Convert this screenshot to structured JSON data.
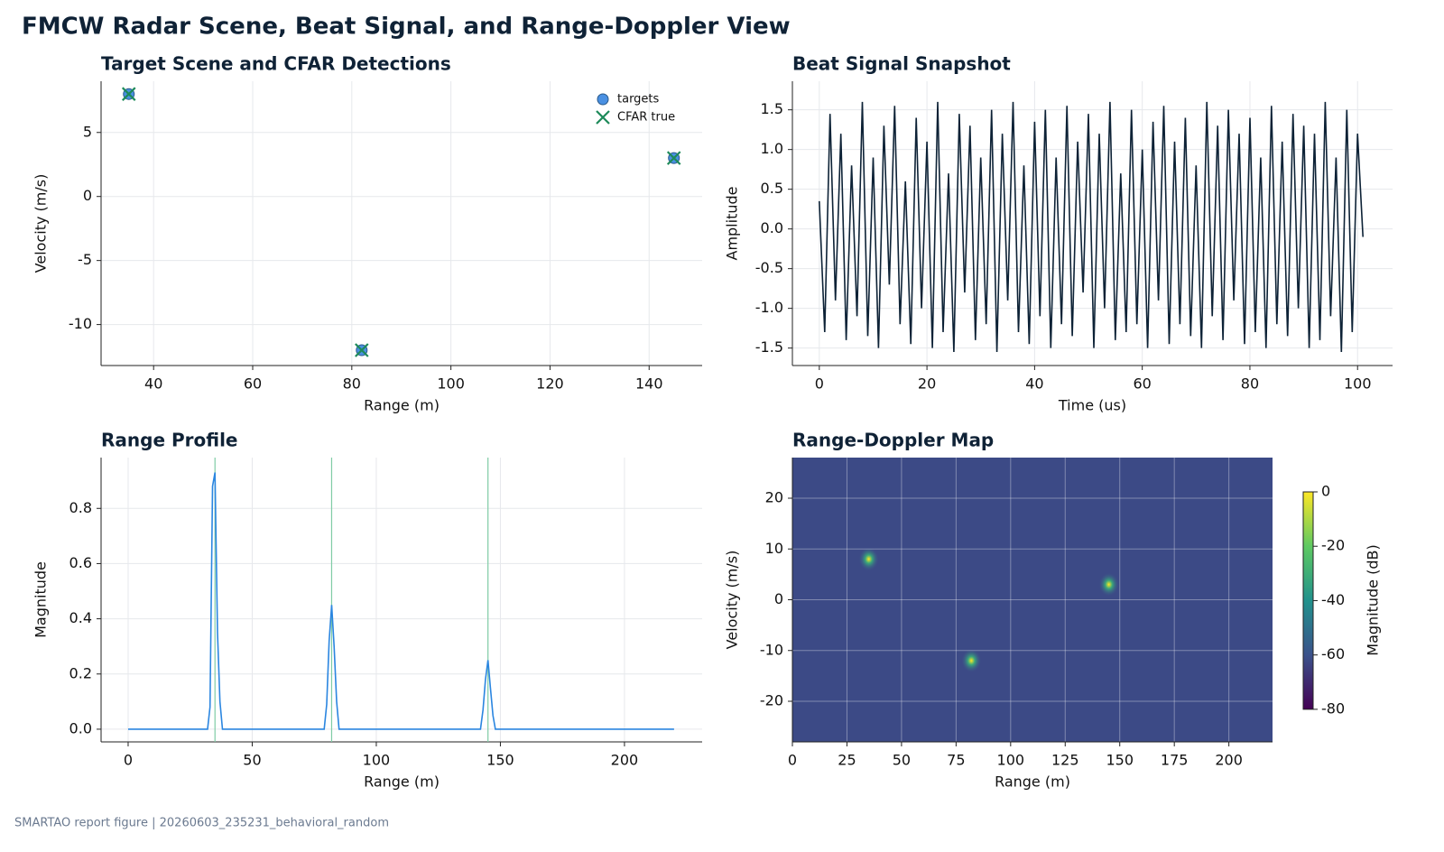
{
  "title": "FMCW Radar Scene, Beat Signal, and Range-Doppler View",
  "footer": "SMARTAO report figure | 20260603_235231_behavioral_random",
  "chart_data": [
    {
      "type": "scatter",
      "title": "Target Scene and CFAR Detections",
      "x_label": "Range (m)",
      "y_label": "Velocity (m/s)",
      "xlim": [
        29.4,
        150.7
      ],
      "ylim": [
        -13.2,
        9.0
      ],
      "xticks": [
        40,
        60,
        80,
        100,
        120,
        140
      ],
      "yticks": [
        -10,
        -5,
        0,
        5
      ],
      "grid": true,
      "legend": "upper right",
      "series": [
        {
          "name": "targets",
          "marker": "o",
          "color": "#4a90e2",
          "x": [
            35,
            82,
            145
          ],
          "values": [
            8,
            -12,
            3
          ]
        },
        {
          "name": "CFAR true",
          "marker": "x",
          "color": "#1e8a5a",
          "x": [
            35,
            82,
            145
          ],
          "values": [
            8,
            -12,
            3
          ]
        }
      ]
    },
    {
      "type": "line",
      "title": "Beat Signal Snapshot",
      "x_label": "Time (us)",
      "y_label": "Amplitude",
      "color": "#0d2236",
      "xlim": [
        -5.0,
        106.5
      ],
      "ylim": [
        -1.72,
        1.86
      ],
      "xticks": [
        0,
        20,
        40,
        60,
        80,
        100
      ],
      "yticks": [
        -1.5,
        {
          "value": -1,
          "label": "-1.0"
        },
        -0.5,
        {
          "value": 0,
          "label": "0.0"
        },
        0.5,
        {
          "value": 1,
          "label": "1.0"
        },
        1.5
      ],
      "grid": true,
      "x": [
        0,
        1,
        2,
        3,
        4,
        5,
        6,
        7,
        8,
        9,
        10,
        11,
        12,
        13,
        14,
        15,
        16,
        17,
        18,
        19,
        20,
        21,
        22,
        23,
        24,
        25,
        26,
        27,
        28,
        29,
        30,
        31,
        32,
        33,
        34,
        35,
        36,
        37,
        38,
        39,
        40,
        41,
        42,
        43,
        44,
        45,
        46,
        47,
        48,
        49,
        50,
        51,
        52,
        53,
        54,
        55,
        56,
        57,
        58,
        59,
        60,
        61,
        62,
        63,
        64,
        65,
        66,
        67,
        68,
        69,
        70,
        71,
        72,
        73,
        74,
        75,
        76,
        77,
        78,
        79,
        80,
        81,
        82,
        83,
        84,
        85,
        86,
        87,
        88,
        89,
        90,
        91,
        92,
        93,
        94,
        95,
        96,
        97,
        98,
        99,
        100,
        101
      ],
      "values": [
        0.35,
        -1.3,
        1.45,
        -0.9,
        1.2,
        -1.4,
        0.8,
        -1.1,
        1.6,
        -1.35,
        0.9,
        -1.5,
        1.3,
        -0.7,
        1.55,
        -1.2,
        0.6,
        -1.45,
        1.4,
        -1.0,
        1.1,
        -1.5,
        1.6,
        -1.3,
        0.7,
        -1.55,
        1.45,
        -0.8,
        1.3,
        -1.4,
        0.9,
        -1.2,
        1.5,
        -1.55,
        1.2,
        -0.9,
        1.6,
        -1.3,
        0.8,
        -1.45,
        1.35,
        -1.1,
        1.5,
        -1.5,
        0.9,
        -1.2,
        1.55,
        -1.35,
        1.1,
        -0.8,
        1.45,
        -1.5,
        1.2,
        -1.0,
        1.6,
        -1.4,
        0.7,
        -1.3,
        1.5,
        -1.2,
        1.0,
        -1.5,
        1.35,
        -0.9,
        1.55,
        -1.45,
        1.1,
        -1.2,
        1.4,
        -1.35,
        0.8,
        -1.5,
        1.6,
        -1.1,
        1.3,
        -1.4,
        1.5,
        -0.9,
        1.2,
        -1.45,
        1.4,
        -1.3,
        0.9,
        -1.5,
        1.55,
        -1.2,
        1.1,
        -1.35,
        1.45,
        -1.0,
        1.3,
        -1.5,
        1.2,
        -1.4,
        1.6,
        -1.1,
        0.9,
        -1.55,
        1.5,
        -1.3,
        1.2,
        -0.1
      ]
    },
    {
      "type": "line",
      "title": "Range Profile",
      "x_label": "Range (m)",
      "y_label": "Magnitude",
      "color": "#2b86e0",
      "detection_color": "#7fcca5",
      "xlim": [
        -10.9,
        231.3
      ],
      "ylim": [
        -0.046,
        0.984
      ],
      "xticks": [
        0,
        50,
        100,
        150,
        200
      ],
      "yticks": [
        {
          "value": 0,
          "label": "0.0"
        },
        0.2,
        0.4,
        0.6,
        0.8
      ],
      "grid": true,
      "detections": [
        35,
        82,
        145
      ],
      "x": [
        0,
        32,
        33,
        34,
        35,
        36,
        37,
        38,
        79,
        80,
        81,
        82,
        83,
        84,
        85,
        142,
        143,
        144,
        145,
        146,
        147,
        148,
        220
      ],
      "values": [
        0,
        0,
        0.08,
        0.88,
        0.93,
        0.35,
        0.1,
        0,
        0,
        0.09,
        0.32,
        0.45,
        0.3,
        0.1,
        0,
        0,
        0.07,
        0.18,
        0.25,
        0.15,
        0.05,
        0,
        0
      ]
    },
    {
      "type": "heatmap",
      "title": "Range-Doppler Map",
      "x_label": "Range (m)",
      "y_label": "Velocity (m/s)",
      "xlim": [
        0,
        220
      ],
      "ylim": [
        -28,
        28
      ],
      "xticks": [
        0,
        25,
        50,
        75,
        100,
        125,
        150,
        175,
        200
      ],
      "yticks": [
        -20,
        -10,
        0,
        10,
        20
      ],
      "grid": true,
      "colormap": "viridis",
      "clim": [
        -80,
        0
      ],
      "background": -62,
      "peaks": [
        {
          "x": 35,
          "y": 8,
          "value": 0
        },
        {
          "x": 82,
          "y": -12,
          "value": 0
        },
        {
          "x": 145,
          "y": 3,
          "value": 0
        }
      ],
      "colorbar": {
        "label": "Magnitude (dB)",
        "lim": [
          -80.7,
          1.0
        ],
        "ticks": [
          0,
          -20,
          -40,
          -60,
          -80
        ]
      }
    }
  ]
}
